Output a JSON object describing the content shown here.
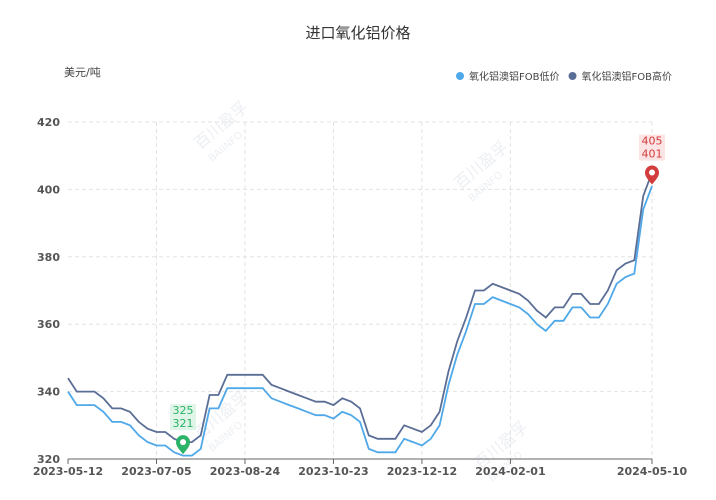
{
  "chart_data": {
    "type": "line",
    "title": "进口氧化铝价格",
    "y_unit": "美元/吨",
    "watermark": [
      "百川盈孚",
      "BAIINFO"
    ],
    "categories": [
      "2023-05-12",
      null,
      null,
      null,
      null,
      null,
      null,
      null,
      null,
      null,
      "2023-07-05",
      null,
      null,
      null,
      null,
      null,
      null,
      null,
      null,
      null,
      "2023-08-24",
      null,
      null,
      null,
      null,
      null,
      null,
      null,
      null,
      null,
      "2023-10-23",
      null,
      null,
      null,
      null,
      null,
      null,
      null,
      null,
      null,
      "2023-12-12",
      null,
      null,
      null,
      null,
      null,
      null,
      null,
      null,
      null,
      "2024-02-01",
      null,
      null,
      null,
      null,
      null,
      null,
      null,
      null,
      null,
      null,
      null,
      null,
      null,
      null,
      null,
      "2024-05-10"
    ],
    "series": [
      {
        "name": "氧化铝澳铝FOB低价",
        "color": "#4fa8e8",
        "values": [
          340,
          336,
          336,
          336,
          334,
          331,
          331,
          330,
          327,
          325,
          324,
          324,
          322,
          321,
          321,
          323,
          335,
          335,
          341,
          341,
          341,
          341,
          341,
          338,
          337,
          336,
          335,
          334,
          333,
          333,
          332,
          334,
          333,
          331,
          323,
          322,
          322,
          322,
          326,
          325,
          324,
          326,
          330,
          342,
          351,
          358,
          366,
          366,
          368,
          367,
          366,
          365,
          363,
          360,
          358,
          361,
          361,
          365,
          365,
          362,
          362,
          366,
          372,
          374,
          375,
          394,
          401
        ]
      },
      {
        "name": "氧化铝澳铝FOB高价",
        "color": "#5b6e96",
        "values": [
          344,
          340,
          340,
          340,
          338,
          335,
          335,
          334,
          331,
          329,
          328,
          328,
          326,
          325,
          325,
          327,
          339,
          339,
          345,
          345,
          345,
          345,
          345,
          342,
          341,
          340,
          339,
          338,
          337,
          337,
          336,
          338,
          337,
          335,
          327,
          326,
          326,
          326,
          330,
          329,
          328,
          330,
          334,
          346,
          355,
          362,
          370,
          370,
          372,
          371,
          370,
          369,
          367,
          364,
          362,
          365,
          365,
          369,
          369,
          366,
          366,
          370,
          376,
          378,
          379,
          398,
          405
        ]
      }
    ],
    "ylim": [
      320,
      420
    ],
    "yticks": [
      320,
      340,
      360,
      380,
      400,
      420
    ],
    "grid": true,
    "legend": "top-right"
  }
}
